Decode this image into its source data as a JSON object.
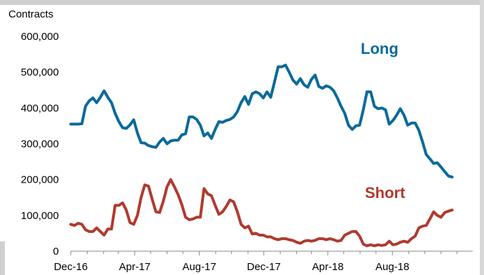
{
  "chart_data": {
    "type": "line",
    "title": "",
    "ylabel": "Contracts",
    "xlabel": "",
    "ylim": [
      0,
      600000
    ],
    "y_ticks": [
      {
        "value": 0,
        "label": "0"
      },
      {
        "value": 100000,
        "label": "100,000"
      },
      {
        "value": 200000,
        "label": "200,000"
      },
      {
        "value": 300000,
        "label": "300,000"
      },
      {
        "value": 400000,
        "label": "400,000"
      },
      {
        "value": 500000,
        "label": "500,000"
      },
      {
        "value": 600000,
        "label": "600,000"
      }
    ],
    "x_range": [
      "2016-12-01",
      "2018-12-31"
    ],
    "x_ticks": [
      {
        "date": "2016-12-01",
        "label": "Dec-16"
      },
      {
        "date": "2017-04-01",
        "label": "Apr-17"
      },
      {
        "date": "2017-08-01",
        "label": "Aug-17"
      },
      {
        "date": "2017-12-01",
        "label": "Dec-17"
      },
      {
        "date": "2018-04-01",
        "label": "Apr-18"
      },
      {
        "date": "2018-08-01",
        "label": "Aug-18"
      }
    ],
    "grid": false,
    "series": [
      {
        "name": "Long",
        "color": "#0a6a9a",
        "points": [
          [
            "2016-12-01",
            355000
          ],
          [
            "2016-12-08",
            355000
          ],
          [
            "2016-12-15",
            355000
          ],
          [
            "2016-12-22",
            356000
          ],
          [
            "2016-12-29",
            405000
          ],
          [
            "2017-01-05",
            420000
          ],
          [
            "2017-01-12",
            428000
          ],
          [
            "2017-01-19",
            415000
          ],
          [
            "2017-01-26",
            430000
          ],
          [
            "2017-02-02",
            448000
          ],
          [
            "2017-02-09",
            430000
          ],
          [
            "2017-02-16",
            415000
          ],
          [
            "2017-02-23",
            385000
          ],
          [
            "2017-03-02",
            362000
          ],
          [
            "2017-03-09",
            345000
          ],
          [
            "2017-03-16",
            343000
          ],
          [
            "2017-03-23",
            353000
          ],
          [
            "2017-03-30",
            367000
          ],
          [
            "2017-04-06",
            330000
          ],
          [
            "2017-04-13",
            303000
          ],
          [
            "2017-04-20",
            302000
          ],
          [
            "2017-04-27",
            295000
          ],
          [
            "2017-05-04",
            292000
          ],
          [
            "2017-05-11",
            290000
          ],
          [
            "2017-05-18",
            305000
          ],
          [
            "2017-05-25",
            315000
          ],
          [
            "2017-06-01",
            300000
          ],
          [
            "2017-06-08",
            308000
          ],
          [
            "2017-06-15",
            310000
          ],
          [
            "2017-06-22",
            310000
          ],
          [
            "2017-06-29",
            325000
          ],
          [
            "2017-07-06",
            328000
          ],
          [
            "2017-07-13",
            375000
          ],
          [
            "2017-07-20",
            375000
          ],
          [
            "2017-07-27",
            368000
          ],
          [
            "2017-08-03",
            352000
          ],
          [
            "2017-08-10",
            322000
          ],
          [
            "2017-08-17",
            330000
          ],
          [
            "2017-08-24",
            315000
          ],
          [
            "2017-08-31",
            340000
          ],
          [
            "2017-09-07",
            362000
          ],
          [
            "2017-09-14",
            360000
          ],
          [
            "2017-09-21",
            365000
          ],
          [
            "2017-09-28",
            368000
          ],
          [
            "2017-10-05",
            375000
          ],
          [
            "2017-10-12",
            390000
          ],
          [
            "2017-10-19",
            415000
          ],
          [
            "2017-10-26",
            432000
          ],
          [
            "2017-11-02",
            410000
          ],
          [
            "2017-11-09",
            440000
          ],
          [
            "2017-11-16",
            445000
          ],
          [
            "2017-11-23",
            440000
          ],
          [
            "2017-11-30",
            428000
          ],
          [
            "2017-12-07",
            445000
          ],
          [
            "2017-12-14",
            430000
          ],
          [
            "2017-12-21",
            472000
          ],
          [
            "2017-12-28",
            515000
          ],
          [
            "2018-01-04",
            515000
          ],
          [
            "2018-01-11",
            520000
          ],
          [
            "2018-01-18",
            500000
          ],
          [
            "2018-01-25",
            478000
          ],
          [
            "2018-02-01",
            467000
          ],
          [
            "2018-02-08",
            482000
          ],
          [
            "2018-02-15",
            465000
          ],
          [
            "2018-02-22",
            458000
          ],
          [
            "2018-03-01",
            480000
          ],
          [
            "2018-03-08",
            492000
          ],
          [
            "2018-03-15",
            460000
          ],
          [
            "2018-03-22",
            455000
          ],
          [
            "2018-03-29",
            462000
          ],
          [
            "2018-04-05",
            458000
          ],
          [
            "2018-04-12",
            448000
          ],
          [
            "2018-04-19",
            428000
          ],
          [
            "2018-04-26",
            405000
          ],
          [
            "2018-05-03",
            385000
          ],
          [
            "2018-05-10",
            352000
          ],
          [
            "2018-05-17",
            340000
          ],
          [
            "2018-05-24",
            350000
          ],
          [
            "2018-05-31",
            352000
          ],
          [
            "2018-06-07",
            395000
          ],
          [
            "2018-06-14",
            445000
          ],
          [
            "2018-06-21",
            445000
          ],
          [
            "2018-06-28",
            405000
          ],
          [
            "2018-07-05",
            398000
          ],
          [
            "2018-07-12",
            400000
          ],
          [
            "2018-07-19",
            395000
          ],
          [
            "2018-07-26",
            355000
          ],
          [
            "2018-08-02",
            365000
          ],
          [
            "2018-08-09",
            380000
          ],
          [
            "2018-08-16",
            398000
          ],
          [
            "2018-08-23",
            380000
          ],
          [
            "2018-08-30",
            352000
          ],
          [
            "2018-09-06",
            358000
          ],
          [
            "2018-09-13",
            358000
          ],
          [
            "2018-09-20",
            338000
          ],
          [
            "2018-09-27",
            305000
          ],
          [
            "2018-10-04",
            270000
          ],
          [
            "2018-10-11",
            258000
          ],
          [
            "2018-10-18",
            245000
          ],
          [
            "2018-10-25",
            247000
          ],
          [
            "2018-11-01",
            235000
          ],
          [
            "2018-11-08",
            222000
          ],
          [
            "2018-11-15",
            210000
          ],
          [
            "2018-11-22",
            207000
          ]
        ]
      },
      {
        "name": "Short",
        "color": "#b03a2e",
        "points": [
          [
            "2016-12-01",
            75000
          ],
          [
            "2016-12-08",
            72000
          ],
          [
            "2016-12-15",
            78000
          ],
          [
            "2016-12-22",
            75000
          ],
          [
            "2016-12-29",
            60000
          ],
          [
            "2017-01-05",
            55000
          ],
          [
            "2017-01-12",
            55000
          ],
          [
            "2017-01-19",
            65000
          ],
          [
            "2017-01-26",
            55000
          ],
          [
            "2017-02-02",
            45000
          ],
          [
            "2017-02-09",
            62000
          ],
          [
            "2017-02-16",
            62000
          ],
          [
            "2017-02-23",
            128000
          ],
          [
            "2017-03-02",
            128000
          ],
          [
            "2017-03-09",
            135000
          ],
          [
            "2017-03-16",
            115000
          ],
          [
            "2017-03-23",
            80000
          ],
          [
            "2017-03-30",
            75000
          ],
          [
            "2017-04-06",
            100000
          ],
          [
            "2017-04-13",
            150000
          ],
          [
            "2017-04-20",
            185000
          ],
          [
            "2017-04-27",
            182000
          ],
          [
            "2017-05-04",
            145000
          ],
          [
            "2017-05-11",
            110000
          ],
          [
            "2017-05-18",
            108000
          ],
          [
            "2017-05-25",
            140000
          ],
          [
            "2017-06-01",
            180000
          ],
          [
            "2017-06-08",
            200000
          ],
          [
            "2017-06-15",
            180000
          ],
          [
            "2017-06-22",
            158000
          ],
          [
            "2017-06-29",
            130000
          ],
          [
            "2017-07-06",
            95000
          ],
          [
            "2017-07-13",
            88000
          ],
          [
            "2017-07-20",
            90000
          ],
          [
            "2017-07-27",
            95000
          ],
          [
            "2017-08-03",
            95000
          ],
          [
            "2017-08-10",
            175000
          ],
          [
            "2017-08-17",
            160000
          ],
          [
            "2017-08-24",
            155000
          ],
          [
            "2017-08-31",
            128000
          ],
          [
            "2017-09-07",
            103000
          ],
          [
            "2017-09-14",
            110000
          ],
          [
            "2017-09-21",
            125000
          ],
          [
            "2017-09-28",
            143000
          ],
          [
            "2017-10-05",
            138000
          ],
          [
            "2017-10-12",
            110000
          ],
          [
            "2017-10-19",
            75000
          ],
          [
            "2017-10-26",
            65000
          ],
          [
            "2017-11-02",
            70000
          ],
          [
            "2017-11-09",
            48000
          ],
          [
            "2017-11-16",
            50000
          ],
          [
            "2017-11-23",
            45000
          ],
          [
            "2017-11-30",
            45000
          ],
          [
            "2017-12-07",
            40000
          ],
          [
            "2017-12-14",
            40000
          ],
          [
            "2017-12-21",
            35000
          ],
          [
            "2017-12-28",
            32000
          ],
          [
            "2018-01-04",
            35000
          ],
          [
            "2018-01-11",
            35000
          ],
          [
            "2018-01-18",
            32000
          ],
          [
            "2018-01-25",
            30000
          ],
          [
            "2018-02-01",
            25000
          ],
          [
            "2018-02-08",
            22000
          ],
          [
            "2018-02-15",
            28000
          ],
          [
            "2018-02-22",
            30000
          ],
          [
            "2018-03-01",
            28000
          ],
          [
            "2018-03-08",
            30000
          ],
          [
            "2018-03-15",
            35000
          ],
          [
            "2018-03-22",
            35000
          ],
          [
            "2018-03-29",
            32000
          ],
          [
            "2018-04-05",
            35000
          ],
          [
            "2018-04-12",
            32000
          ],
          [
            "2018-04-19",
            28000
          ],
          [
            "2018-04-26",
            30000
          ],
          [
            "2018-05-03",
            45000
          ],
          [
            "2018-05-10",
            50000
          ],
          [
            "2018-05-17",
            55000
          ],
          [
            "2018-05-24",
            55000
          ],
          [
            "2018-05-31",
            42000
          ],
          [
            "2018-06-07",
            20000
          ],
          [
            "2018-06-14",
            15000
          ],
          [
            "2018-06-21",
            18000
          ],
          [
            "2018-06-28",
            15000
          ],
          [
            "2018-07-05",
            18000
          ],
          [
            "2018-07-12",
            16000
          ],
          [
            "2018-07-19",
            18000
          ],
          [
            "2018-07-26",
            28000
          ],
          [
            "2018-08-02",
            18000
          ],
          [
            "2018-08-09",
            20000
          ],
          [
            "2018-08-16",
            25000
          ],
          [
            "2018-08-23",
            28000
          ],
          [
            "2018-08-30",
            25000
          ],
          [
            "2018-09-06",
            35000
          ],
          [
            "2018-09-13",
            42000
          ],
          [
            "2018-09-20",
            65000
          ],
          [
            "2018-09-27",
            70000
          ],
          [
            "2018-10-04",
            72000
          ],
          [
            "2018-10-11",
            90000
          ],
          [
            "2018-10-18",
            110000
          ],
          [
            "2018-10-25",
            100000
          ],
          [
            "2018-11-01",
            95000
          ],
          [
            "2018-11-08",
            108000
          ],
          [
            "2018-11-15",
            112000
          ],
          [
            "2018-11-22",
            115000
          ]
        ]
      }
    ],
    "annotations": [
      {
        "text": "Long",
        "series": "Long",
        "color": "#0a6a9a"
      },
      {
        "text": "Short",
        "series": "Short",
        "color": "#b03a2e"
      }
    ]
  }
}
